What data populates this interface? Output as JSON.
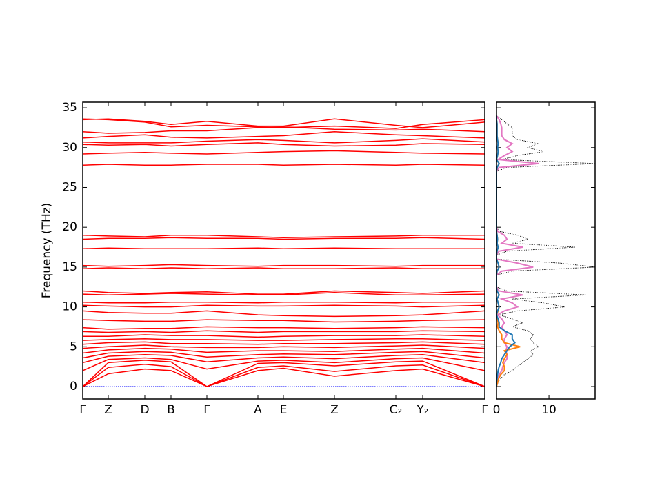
{
  "chart_data": [
    {
      "type": "line",
      "ylabel": "Frequency (THz)",
      "x": [
        0,
        0.37,
        0.9,
        1.28,
        1.8,
        2.54,
        2.91,
        3.65,
        4.54,
        4.93,
        5.83
      ],
      "xlim": [
        0,
        5.83
      ],
      "xticks": [
        {
          "value": 0,
          "label": "Γ"
        },
        {
          "value": 0.37,
          "label": "Z"
        },
        {
          "value": 0.9,
          "label": "D"
        },
        {
          "value": 1.28,
          "label": "B"
        },
        {
          "value": 1.8,
          "label": "Γ"
        },
        {
          "value": 2.54,
          "label": "A"
        },
        {
          "value": 2.91,
          "label": "E"
        },
        {
          "value": 3.65,
          "label": "Z"
        },
        {
          "value": 4.54,
          "label": "C₂"
        },
        {
          "value": 4.93,
          "label": "Y₂"
        },
        {
          "value": 5.83,
          "label": "Γ"
        }
      ],
      "ylim": [
        -1.56,
        35.7
      ],
      "yticks": [
        0,
        5,
        10,
        15,
        20,
        25,
        30,
        35
      ],
      "reference_line": {
        "value": 0,
        "color": "#0000ff"
      },
      "series": [
        {
          "color": "#ff0000",
          "values": [
            0,
            1.6,
            2.2,
            2.0,
            0,
            2.0,
            2.3,
            1.3,
            2.0,
            2.2,
            0
          ]
        },
        {
          "color": "#ff0000",
          "values": [
            0,
            2.4,
            2.8,
            2.5,
            0,
            2.4,
            2.6,
            1.9,
            2.6,
            2.7,
            0
          ]
        },
        {
          "color": "#ff0000",
          "values": [
            0,
            3.0,
            3.3,
            3.1,
            0,
            2.9,
            3.0,
            2.6,
            3.1,
            3.2,
            0
          ]
        },
        {
          "color": "#ff0000",
          "values": [
            2.0,
            3.4,
            3.6,
            3.4,
            2.2,
            3.2,
            3.3,
            3.0,
            3.5,
            3.6,
            2.0
          ]
        },
        {
          "color": "#ff0000",
          "values": [
            3.0,
            3.8,
            4.0,
            3.9,
            3.1,
            3.6,
            3.7,
            3.5,
            3.9,
            4.0,
            3.0
          ]
        },
        {
          "color": "#ff0000",
          "values": [
            3.6,
            4.2,
            4.4,
            4.3,
            3.7,
            4.0,
            4.1,
            4.0,
            4.3,
            4.4,
            3.6
          ]
        },
        {
          "color": "#ff0000",
          "values": [
            4.2,
            4.6,
            4.8,
            4.7,
            4.3,
            4.5,
            4.5,
            4.4,
            4.7,
            4.8,
            4.2
          ]
        },
        {
          "color": "#ff0000",
          "values": [
            4.8,
            5.0,
            5.2,
            5.0,
            4.9,
            4.9,
            5.0,
            4.9,
            5.1,
            5.2,
            4.8
          ]
        },
        {
          "color": "#ff0000",
          "values": [
            5.3,
            5.5,
            5.6,
            5.4,
            5.4,
            5.3,
            5.4,
            5.4,
            5.5,
            5.6,
            5.3
          ]
        },
        {
          "color": "#ff0000",
          "values": [
            5.8,
            5.9,
            6.0,
            5.9,
            5.9,
            5.8,
            5.8,
            5.9,
            6.0,
            6.0,
            5.8
          ]
        },
        {
          "color": "#ff0000",
          "values": [
            6.3,
            6.3,
            6.5,
            6.4,
            6.4,
            6.2,
            6.3,
            6.4,
            6.4,
            6.5,
            6.3
          ]
        },
        {
          "color": "#ff0000",
          "values": [
            6.9,
            6.8,
            6.9,
            6.8,
            7.0,
            6.8,
            6.9,
            6.9,
            6.9,
            7.0,
            6.9
          ]
        },
        {
          "color": "#ff0000",
          "values": [
            7.4,
            7.2,
            7.3,
            7.3,
            7.5,
            7.4,
            7.4,
            7.3,
            7.4,
            7.5,
            7.4
          ]
        },
        {
          "color": "#ff0000",
          "values": [
            8.4,
            8.3,
            8.2,
            8.2,
            8.4,
            8.3,
            8.3,
            8.1,
            8.2,
            8.3,
            8.4
          ]
        },
        {
          "color": "#ff0000",
          "values": [
            9.5,
            9.3,
            9.2,
            9.2,
            9.5,
            9.0,
            8.9,
            8.8,
            8.9,
            9.0,
            9.5
          ]
        },
        {
          "color": "#ff0000",
          "values": [
            10.2,
            10.1,
            10.0,
            10.0,
            10.2,
            10.1,
            10.1,
            10.2,
            10.1,
            10.0,
            10.2
          ]
        },
        {
          "color": "#ff0000",
          "values": [
            10.6,
            10.5,
            10.5,
            10.6,
            10.6,
            10.5,
            10.6,
            10.6,
            10.5,
            10.6,
            10.6
          ]
        },
        {
          "color": "#ff0000",
          "values": [
            11.6,
            11.5,
            11.6,
            11.7,
            11.6,
            11.5,
            11.5,
            11.8,
            11.5,
            11.5,
            11.6
          ]
        },
        {
          "color": "#ff0000",
          "values": [
            12.0,
            11.8,
            11.7,
            11.8,
            11.9,
            11.6,
            11.6,
            12.0,
            11.8,
            11.7,
            12.0
          ]
        },
        {
          "color": "#ff0000",
          "values": [
            14.8,
            14.9,
            14.8,
            14.9,
            14.8,
            14.9,
            14.8,
            14.8,
            14.9,
            14.8,
            14.8
          ]
        },
        {
          "color": "#ff0000",
          "values": [
            15.2,
            15.1,
            15.2,
            15.3,
            15.2,
            15.1,
            15.2,
            15.2,
            15.1,
            15.2,
            15.2
          ]
        },
        {
          "color": "#ff0000",
          "values": [
            17.3,
            17.4,
            17.3,
            17.3,
            17.3,
            17.4,
            17.3,
            17.4,
            17.3,
            17.3,
            17.3
          ]
        },
        {
          "color": "#ff0000",
          "values": [
            18.5,
            18.6,
            18.6,
            18.7,
            18.6,
            18.6,
            18.5,
            18.6,
            18.6,
            18.7,
            18.5
          ]
        },
        {
          "color": "#ff0000",
          "values": [
            19.0,
            18.9,
            18.8,
            19.0,
            19.0,
            18.8,
            18.7,
            18.8,
            18.9,
            19.0,
            19.0
          ]
        },
        {
          "color": "#ff0000",
          "values": [
            27.8,
            27.9,
            27.8,
            27.8,
            27.9,
            27.9,
            27.8,
            27.9,
            27.8,
            27.9,
            27.8
          ]
        },
        {
          "color": "#ff0000",
          "values": [
            29.2,
            29.3,
            29.4,
            29.3,
            29.2,
            29.4,
            29.5,
            29.6,
            29.4,
            29.3,
            29.2
          ]
        },
        {
          "color": "#ff0000",
          "values": [
            30.4,
            30.3,
            30.4,
            30.2,
            30.4,
            30.6,
            30.4,
            30.2,
            30.3,
            30.5,
            30.4
          ]
        },
        {
          "color": "#ff0000",
          "values": [
            30.7,
            30.6,
            30.6,
            30.6,
            30.8,
            31.0,
            30.9,
            30.6,
            30.9,
            31.1,
            30.7
          ]
        },
        {
          "color": "#ff0000",
          "values": [
            31.2,
            31.4,
            31.6,
            31.3,
            31.2,
            31.4,
            31.5,
            32.0,
            31.6,
            31.5,
            31.2
          ]
        },
        {
          "color": "#ff0000",
          "values": [
            32.0,
            31.8,
            31.9,
            32.1,
            32.1,
            32.5,
            32.6,
            32.3,
            32.2,
            32.3,
            32.0
          ]
        },
        {
          "color": "#ff0000",
          "values": [
            33.6,
            33.5,
            33.2,
            32.6,
            32.8,
            32.6,
            32.5,
            32.7,
            32.4,
            32.9,
            33.5
          ]
        },
        {
          "color": "#ff0000",
          "values": [
            33.5,
            33.6,
            33.3,
            32.9,
            33.3,
            32.7,
            32.7,
            33.6,
            32.8,
            32.5,
            33.2
          ]
        }
      ]
    },
    {
      "type": "dos",
      "y": [
        0,
        0.5,
        1,
        1.5,
        2,
        2.5,
        3,
        3.5,
        4,
        4.5,
        5,
        5.5,
        6,
        6.5,
        7,
        7.5,
        8,
        8.5,
        9,
        9.5,
        10,
        10.5,
        11,
        11.5,
        12,
        12.5,
        13,
        13.5,
        14,
        14.5,
        15,
        15.5,
        16,
        16.5,
        17,
        17.5,
        18,
        18.5,
        19,
        19.5,
        20,
        20.5,
        21,
        21.5,
        22,
        22.5,
        23,
        23.5,
        24,
        24.5,
        25,
        25.5,
        26,
        26.5,
        27,
        27.5,
        28,
        28.5,
        29,
        29.5,
        30,
        30.5,
        31,
        31.5,
        32,
        32.5,
        33,
        33.5,
        34
      ],
      "xlim": [
        0,
        18.8
      ],
      "xticks": [
        0,
        10
      ],
      "ylim": [
        -1.56,
        35.7
      ],
      "yticks": [
        0,
        5,
        10,
        15,
        20,
        25,
        30,
        35
      ],
      "series": [
        {
          "color": "#000000",
          "style": "dotted",
          "values": [
            0,
            0.3,
            0.8,
            1.5,
            3,
            4,
            5,
            6,
            7,
            6.5,
            8,
            7,
            6.5,
            7,
            6,
            3,
            5,
            3,
            0.5,
            4,
            13,
            9,
            3,
            17,
            2,
            0,
            0,
            0,
            0,
            3,
            19,
            12,
            0,
            0,
            2,
            15,
            3,
            6,
            4,
            0.5,
            0,
            0,
            0,
            0,
            0,
            0,
            0,
            0,
            0,
            0,
            0,
            0,
            0,
            0,
            0,
            2,
            19,
            1,
            4,
            9,
            6,
            8,
            4,
            3,
            3,
            3,
            2,
            1,
            0
          ]
        },
        {
          "color": "#e377c2",
          "values": [
            0,
            0.1,
            0.3,
            0.5,
            1,
            1.2,
            1.5,
            2,
            2,
            1.8,
            2,
            1.5,
            1.5,
            2,
            1.5,
            1,
            1.5,
            1,
            0.2,
            1.5,
            4,
            3,
            1,
            5,
            0.5,
            0,
            0,
            0,
            0,
            1,
            7,
            4,
            0,
            0,
            0.5,
            5,
            1,
            2,
            1.5,
            0.2,
            0,
            0,
            0,
            0,
            0,
            0,
            0,
            0,
            0,
            0,
            0,
            0,
            0,
            0,
            0,
            0.5,
            8,
            0.3,
            1.5,
            3,
            2,
            3,
            1.5,
            1,
            1,
            1,
            0.8,
            0.5,
            0
          ]
        },
        {
          "color": "#ff7f0e",
          "values": [
            0,
            0.2,
            0.4,
            0.8,
            1.5,
            1.5,
            1.2,
            1.5,
            2,
            1.5,
            4.5,
            1.5,
            1,
            1,
            0.5,
            0.2,
            0.3,
            0.2,
            0,
            0.3,
            0.5,
            0.3,
            0.1,
            0.5,
            0.1,
            0,
            0,
            0,
            0,
            0.1,
            0.5,
            0.3,
            0,
            0,
            0.1,
            0.3,
            0.1,
            0.2,
            0.1,
            0,
            0,
            0,
            0,
            0,
            0,
            0,
            0,
            0,
            0,
            0,
            0,
            0,
            0,
            0,
            0,
            0.1,
            0.5,
            0,
            0.2,
            0.3,
            0.2,
            0.3,
            0.2,
            0.1,
            0.1,
            0.1,
            0.1,
            0,
            0
          ]
        },
        {
          "color": "#1f77b4",
          "values": [
            0,
            0,
            0.1,
            0.2,
            0.3,
            0.5,
            0.8,
            1,
            1.5,
            2,
            2.5,
            3.5,
            3,
            3,
            1.5,
            0.5,
            0.5,
            0.3,
            0,
            0.2,
            0.5,
            0.3,
            0.1,
            0.5,
            0.1,
            0,
            0,
            0,
            0,
            0.1,
            0.5,
            0.3,
            0,
            0,
            0.1,
            0.3,
            0.1,
            0.2,
            0.1,
            0,
            0,
            0,
            0,
            0,
            0,
            0,
            0,
            0,
            0,
            0,
            0,
            0,
            0,
            0,
            0,
            0.1,
            0.5,
            0,
            0.2,
            0.3,
            0.2,
            0.3,
            0.2,
            0.1,
            0.1,
            0.1,
            0.1,
            0,
            0
          ]
        }
      ]
    }
  ]
}
